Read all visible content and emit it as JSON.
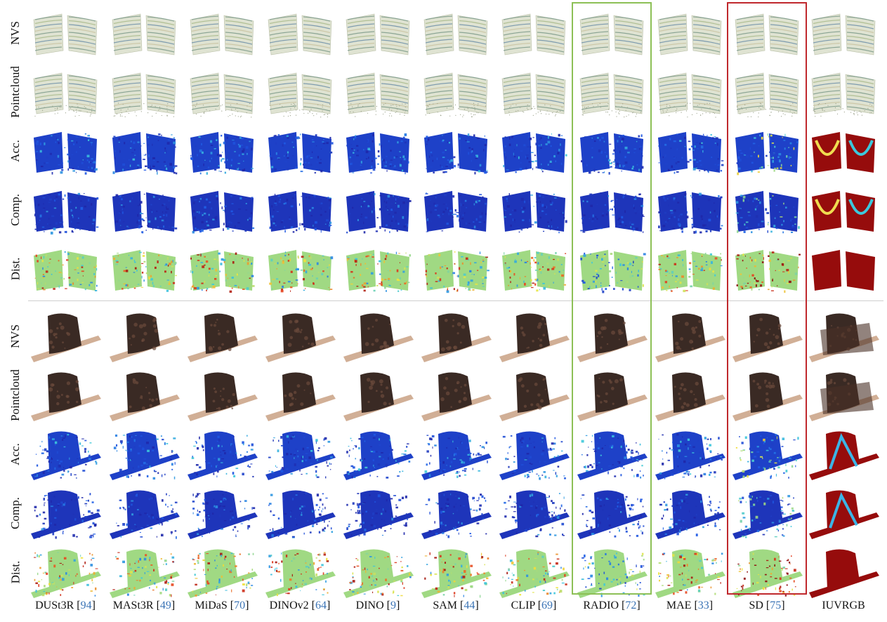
{
  "figure": {
    "sections": [
      {
        "id": "books",
        "row_labels": [
          "NVS",
          "Pointcloud",
          "Acc.",
          "Comp.",
          "Dist."
        ]
      },
      {
        "id": "hat",
        "row_labels": [
          "NVS",
          "Pointcloud",
          "Acc.",
          "Comp.",
          "Dist."
        ]
      }
    ],
    "columns": [
      {
        "name": "DUSt3R",
        "ref": "94"
      },
      {
        "name": "MASt3R",
        "ref": "49"
      },
      {
        "name": "MiDaS",
        "ref": "70"
      },
      {
        "name": "DINOv2",
        "ref": "64"
      },
      {
        "name": "DINO",
        "ref": "9"
      },
      {
        "name": "SAM",
        "ref": "44"
      },
      {
        "name": "CLIP",
        "ref": "69"
      },
      {
        "name": "RADIO",
        "ref": "72"
      },
      {
        "name": "MAE",
        "ref": "33"
      },
      {
        "name": "SD",
        "ref": "75"
      },
      {
        "name": "IUVRGB",
        "ref": ""
      }
    ],
    "highlights": [
      {
        "column": "RADIO",
        "color": "#8dc056"
      },
      {
        "column": "SD",
        "color": "#c0282d"
      }
    ]
  }
}
